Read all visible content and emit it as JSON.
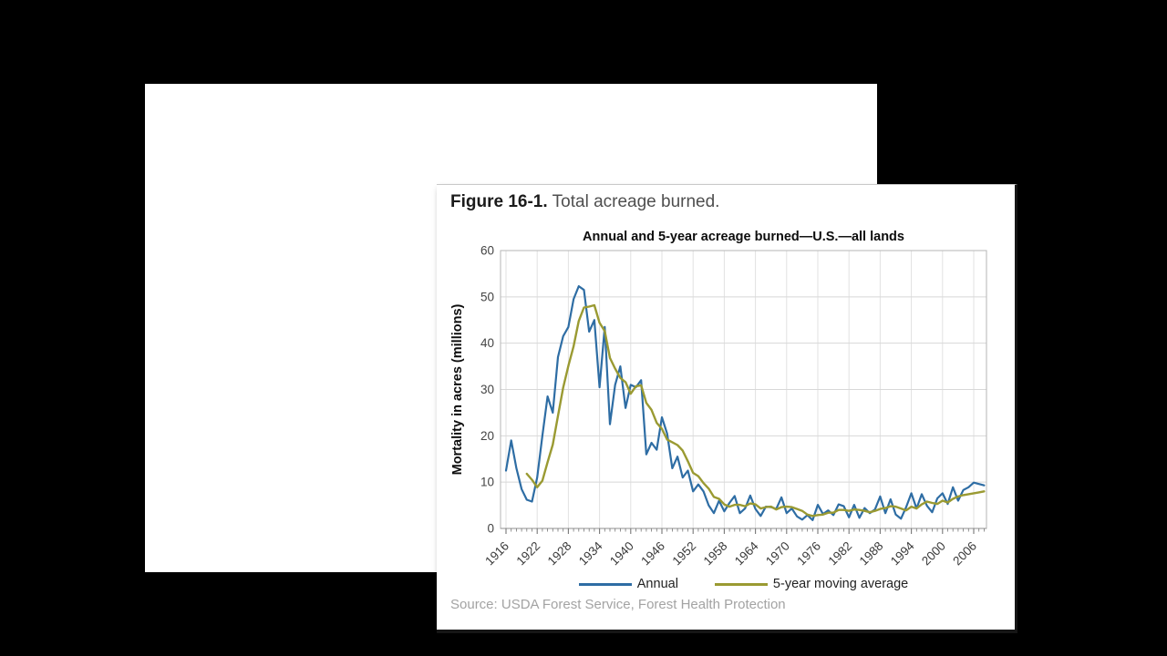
{
  "figure": {
    "caption_bold": "Figure 16-1.",
    "caption_rest": "Total acreage burned.",
    "source": "Source: USDA Forest Service, Forest Health Protection"
  },
  "chart_data": {
    "type": "line",
    "title": "Annual and 5-year acreage burned—U.S.—all lands",
    "xlabel": "",
    "ylabel": "Mortality in acres (millions)",
    "ylim": [
      0,
      60
    ],
    "yticks": [
      0,
      10,
      20,
      30,
      40,
      50,
      60
    ],
    "x_range": [
      1916,
      2008
    ],
    "xtick_labels": [
      1916,
      1922,
      1928,
      1934,
      1940,
      1946,
      1952,
      1958,
      1964,
      1970,
      1976,
      1982,
      1988,
      1994,
      2000,
      2006
    ],
    "grid": true,
    "legend_position": "bottom",
    "series": [
      {
        "name": "Annual",
        "color": "#2e6da4",
        "first_year": 1916,
        "values": [
          12.5,
          19.0,
          13.0,
          8.5,
          6.2,
          5.8,
          11.0,
          20.0,
          28.5,
          25.0,
          37.0,
          41.5,
          43.5,
          49.5,
          52.3,
          51.5,
          42.5,
          45.0,
          30.5,
          43.5,
          22.5,
          31.0,
          35.0,
          26.0,
          31.0,
          30.5,
          32.0,
          16.0,
          18.5,
          17.0,
          24.0,
          20.5,
          13.0,
          15.5,
          11.0,
          12.5,
          8.0,
          9.5,
          8.0,
          5.0,
          3.3,
          6.0,
          3.7,
          5.5,
          7.0,
          3.3,
          4.3,
          7.1,
          4.2,
          2.7,
          4.7,
          4.6,
          4.2,
          6.7,
          3.3,
          4.3,
          2.6,
          1.9,
          2.9,
          1.8,
          5.1,
          3.1,
          3.9,
          2.9,
          5.2,
          4.8,
          2.4,
          5.1,
          2.3,
          4.4,
          3.3,
          4.1,
          6.9,
          3.3,
          6.3,
          3.0,
          2.1,
          4.6,
          7.6,
          4.3,
          7.4,
          4.9,
          3.5,
          6.5,
          7.6,
          5.3,
          8.9,
          6.0,
          8.3,
          8.9,
          9.9,
          9.6,
          9.3
        ]
      },
      {
        "name": "5-year moving average",
        "color": "#9a9a32",
        "first_year": 1920,
        "values": [
          11.8,
          10.5,
          8.9,
          10.3,
          14.3,
          18.1,
          24.3,
          30.4,
          35.1,
          39.3,
          44.8,
          47.7,
          47.9,
          48.2,
          44.4,
          42.6,
          36.8,
          34.5,
          32.5,
          31.6,
          29.1,
          30.7,
          30.9,
          27.1,
          25.6,
          22.8,
          21.5,
          19.2,
          18.6,
          18.0,
          16.8,
          14.5,
          12.0,
          11.3,
          9.8,
          8.6,
          6.8,
          6.4,
          5.2,
          4.7,
          5.1,
          5.1,
          4.8,
          5.4,
          5.2,
          4.3,
          4.6,
          4.7,
          4.1,
          4.6,
          4.7,
          4.6,
          4.2,
          3.8,
          3.0,
          2.7,
          2.9,
          3.0,
          3.4,
          3.4,
          4.0,
          4.0,
          3.8,
          4.1,
          4.0,
          3.8,
          3.5,
          3.8,
          4.2,
          4.4,
          4.8,
          4.7,
          4.3,
          3.9,
          4.7,
          4.3,
          5.2,
          5.8,
          5.5,
          5.3,
          6.0,
          5.6,
          6.4,
          6.9,
          7.2,
          7.4,
          7.6,
          7.8,
          8.0
        ]
      }
    ],
    "colors": {
      "gridline": "#d8d8d8",
      "plot_border": "#b5b5b5",
      "axis": "#8f8f8f",
      "tick": "#777777",
      "tick_label": "#444444",
      "title_text": "#0d0d0d"
    }
  }
}
